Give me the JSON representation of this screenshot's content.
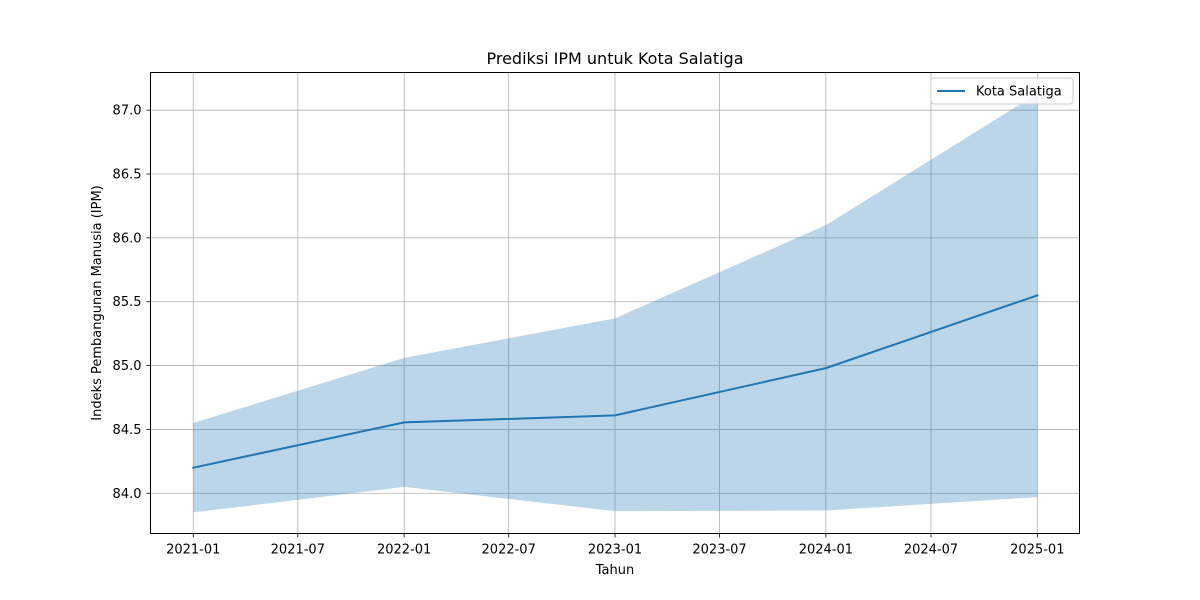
{
  "chart_data": {
    "type": "line",
    "title": "Prediksi IPM untuk Kota Salatiga",
    "xlabel": "Tahun",
    "ylabel": "Indeks Pembangunan Manusia (IPM)",
    "x": [
      "2021-01-01",
      "2022-01-01",
      "2023-01-01",
      "2024-01-01",
      "2025-01-01"
    ],
    "series": [
      {
        "name": "Kota Salatiga",
        "color": "#1f77b4",
        "values": [
          84.2,
          84.555,
          84.61,
          84.98,
          85.55
        ]
      }
    ],
    "confidence_band": {
      "color": "#1f77b4",
      "opacity": 0.3,
      "upper": [
        84.55,
        85.06,
        85.37,
        86.1,
        87.13
      ],
      "lower": [
        83.85,
        84.05,
        83.86,
        83.865,
        83.97
      ]
    },
    "x_ticks": [
      "2021-01",
      "2021-07",
      "2022-01",
      "2022-07",
      "2023-01",
      "2023-07",
      "2024-01",
      "2024-07",
      "2025-01"
    ],
    "x_tick_dates": [
      "2021-01-01",
      "2021-07-01",
      "2022-01-01",
      "2022-07-01",
      "2023-01-01",
      "2023-07-01",
      "2024-01-01",
      "2024-07-01",
      "2025-01-01"
    ],
    "y_ticks": [
      84.0,
      84.5,
      85.0,
      85.5,
      86.0,
      86.5,
      87.0
    ],
    "y_tick_labels": [
      "84.0",
      "84.5",
      "85.0",
      "85.5",
      "86.0",
      "86.5",
      "87.0"
    ],
    "xlim": [
      "2020-10-19",
      "2025-03-15"
    ],
    "ylim": [
      83.685,
      87.295
    ],
    "grid": true,
    "legend_position": "top-right"
  }
}
